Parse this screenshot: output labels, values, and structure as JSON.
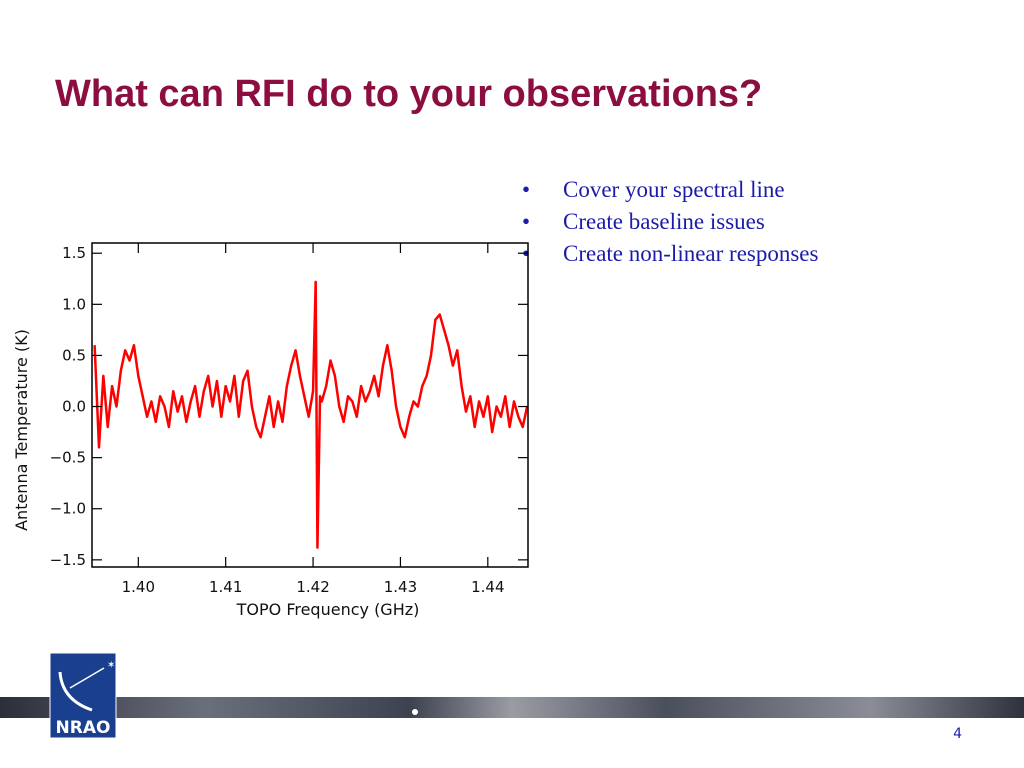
{
  "header": {
    "title": "What can RFI do to your observations?"
  },
  "bullets": [
    "Cover your spectral line",
    "Create baseline issues",
    "Create non-linear responses"
  ],
  "logo": {
    "text": "NRAO"
  },
  "page_number": "4",
  "chart_data": {
    "type": "line",
    "xlabel": "TOPO Frequency (GHz)",
    "ylabel": "Antenna Temperature (K)",
    "xlim": [
      1.3947,
      1.4446
    ],
    "ylim": [
      -1.57,
      1.6
    ],
    "xticks": [
      {
        "value": 1.4,
        "label": "1.40"
      },
      1.41,
      1.42,
      1.43,
      1.44
    ],
    "yticks": [
      {
        "value": -1.5,
        "label": "−1.5"
      },
      {
        "value": -1.0,
        "label": "−1.0"
      },
      {
        "value": -0.5,
        "label": "−0.5"
      },
      {
        "value": 0,
        "label": "0.0"
      },
      0.5,
      {
        "value": 1.0,
        "label": "1.0"
      },
      1.5
    ],
    "series": [
      {
        "color": "#ff0000",
        "x": [
          1.395,
          1.3955,
          1.396,
          1.3965,
          1.397,
          1.3975,
          1.398,
          1.3985,
          1.399,
          1.3995,
          1.4,
          1.4005,
          1.401,
          1.4015,
          1.402,
          1.4025,
          1.403,
          1.4035,
          1.404,
          1.4045,
          1.405,
          1.4055,
          1.406,
          1.4065,
          1.407,
          1.4075,
          1.408,
          1.4085,
          1.409,
          1.4095,
          1.41,
          1.4105,
          1.411,
          1.4115,
          1.412,
          1.4125,
          1.413,
          1.4135,
          1.414,
          1.4145,
          1.415,
          1.4155,
          1.416,
          1.4165,
          1.417,
          1.4175,
          1.418,
          1.4185,
          1.419,
          1.4195,
          1.42,
          1.4203,
          1.4205,
          1.4208,
          1.421,
          1.4215,
          1.422,
          1.4225,
          1.423,
          1.4235,
          1.424,
          1.4245,
          1.425,
          1.4255,
          1.426,
          1.4265,
          1.427,
          1.4275,
          1.428,
          1.4285,
          1.429,
          1.4295,
          1.43,
          1.4305,
          1.431,
          1.4315,
          1.432,
          1.4325,
          1.433,
          1.4335,
          1.434,
          1.4345,
          1.435,
          1.4355,
          1.436,
          1.4365,
          1.437,
          1.4375,
          1.438,
          1.4385,
          1.439,
          1.4395,
          1.44,
          1.4405,
          1.441,
          1.4415,
          1.442,
          1.4425,
          1.443,
          1.4435,
          1.444,
          1.4445
        ],
        "values": [
          0.6,
          -0.4,
          0.3,
          -0.2,
          0.2,
          0.0,
          0.35,
          0.55,
          0.45,
          0.6,
          0.3,
          0.1,
          -0.1,
          0.05,
          -0.15,
          0.1,
          0.0,
          -0.2,
          0.15,
          -0.05,
          0.1,
          -0.15,
          0.05,
          0.2,
          -0.1,
          0.15,
          0.3,
          0.0,
          0.25,
          -0.1,
          0.2,
          0.05,
          0.3,
          -0.1,
          0.25,
          0.35,
          0.0,
          -0.2,
          -0.3,
          -0.1,
          0.1,
          -0.2,
          0.05,
          -0.15,
          0.2,
          0.4,
          0.55,
          0.3,
          0.1,
          -0.1,
          0.15,
          1.22,
          -1.38,
          0.1,
          0.05,
          0.2,
          0.45,
          0.3,
          0.0,
          -0.15,
          0.1,
          0.05,
          -0.1,
          0.2,
          0.05,
          0.15,
          0.3,
          0.1,
          0.4,
          0.6,
          0.35,
          0.0,
          -0.2,
          -0.3,
          -0.1,
          0.05,
          0.0,
          0.2,
          0.3,
          0.5,
          0.85,
          0.9,
          0.75,
          0.6,
          0.4,
          0.55,
          0.2,
          -0.05,
          0.1,
          -0.2,
          0.05,
          -0.1,
          0.1,
          -0.25,
          0.0,
          -0.1,
          0.1,
          -0.2,
          0.05,
          -0.1,
          -0.2,
          0.0
        ]
      }
    ]
  }
}
